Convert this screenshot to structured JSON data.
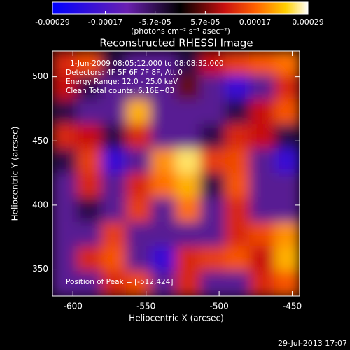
{
  "chart_data": {
    "type": "heatmap",
    "title": "Reconstructed RHESSI Image",
    "x_label": "Heliocentric X (arcsec)",
    "y_label": "Heliocentric Y (arcsec)",
    "colorbar_label": "(photons cm⁻² s⁻¹ asec⁻²)",
    "annotations": [
      "1-Jun-2009 08:05:12.000 to 08:08:32.000",
      "Detectors: 4F 5F 6F 7F 8F, Att 0",
      "Energy Range: 12.0 - 25.0 keV",
      "Clean     Total counts: 6.16E+03"
    ],
    "peak_note": "Position of Peak = [-512,424]",
    "footer": "29-Jul-2013 17:07",
    "xlim": [
      -614,
      -445
    ],
    "xticks": [
      -600,
      -550,
      -500,
      -450
    ],
    "ylim": [
      329,
      520
    ],
    "yticks": [
      350,
      400,
      450,
      500
    ],
    "clim": [
      -0.00029,
      0.00029
    ],
    "cticks": [
      -0.00029,
      -0.00017,
      {
        "value": -5.7e-05,
        "label": "-5.7e-05"
      },
      {
        "value": 5.7e-05,
        "label": "5.7e-05"
      },
      0.00017,
      0.00029
    ],
    "colormap": [
      {
        "value": -0.00029,
        "color": "#0000ff"
      },
      {
        "value": -0.00012,
        "color": "#6a20b0"
      },
      {
        "value": 0,
        "color": "#000000"
      },
      {
        "value": 0.0001,
        "color": "#c81010"
      },
      {
        "value": 0.00017,
        "color": "#ff6000"
      },
      {
        "value": 0.00024,
        "color": "#ffd000"
      },
      {
        "value": 0.00029,
        "color": "#ffffff"
      }
    ],
    "z": [
      [
        0.00012,
        0.00015,
        -5e-05,
        -0.0001,
        -0.0001,
        -5e-05,
        0.0001,
        0.00014,
        0.00016,
        0.00018
      ],
      [
        0.0001,
        -5e-05,
        -0.0001,
        -0.0001,
        -0.0001,
        5e-05,
        -0.0001,
        -0.0002,
        -0.0001,
        0.00012
      ],
      [
        -5e-05,
        -0.0001,
        -0.0001,
        0.00022,
        -0.0001,
        -0.0001,
        -0.0001,
        -5e-05,
        0.0001,
        0.00016
      ],
      [
        0.00012,
        0.0001,
        -5e-05,
        0.00012,
        -0.0001,
        -0.0001,
        -5e-05,
        0.00012,
        0.0001,
        -5e-05
      ],
      [
        -5e-05,
        0.00014,
        -0.0002,
        -0.0001,
        0.0002,
        0.00026,
        0.00014,
        0.00015,
        -0.0001,
        -0.0002
      ],
      [
        -0.0001,
        0.00012,
        -0.0001,
        0.00012,
        0.00018,
        0.00022,
        -5e-05,
        0.00016,
        -0.0001,
        -0.0001
      ],
      [
        -0.0001,
        -5e-05,
        -0.0001,
        0.00014,
        -0.0001,
        0.00018,
        -0.0001,
        0.00012,
        -0.0001,
        -0.0001
      ],
      [
        -0.0001,
        -0.0001,
        0.00014,
        -0.0001,
        -0.0001,
        -0.0001,
        -0.0001,
        0.00012,
        0.00015,
        0.0002
      ],
      [
        -0.0001,
        0.00012,
        0.00016,
        -0.0001,
        -0.0002,
        0.00012,
        0.00014,
        0.00016,
        0.0001,
        0.00022
      ],
      [
        -0.0001,
        -0.0001,
        0.00012,
        0.00015,
        -0.0001,
        0.00012,
        -0.0001,
        -0.0001,
        0.00012,
        0.00016
      ]
    ]
  }
}
